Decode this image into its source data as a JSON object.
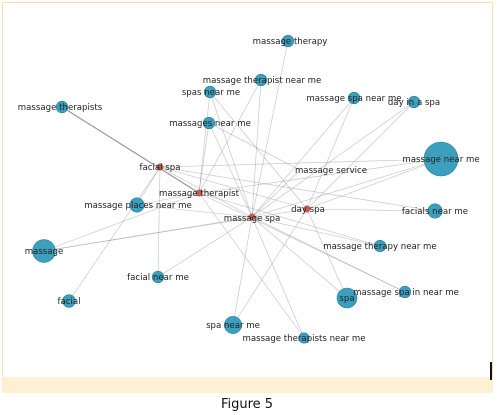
{
  "caption": "Figure 5",
  "colors": {
    "hub": "#cf5b4f",
    "keyword": "#3c9fbd",
    "keyword_stroke": "#2a7e98",
    "edge": "#8a8a8a",
    "frame_band": "#fdf0d4"
  },
  "graph": {
    "hubs": [
      {
        "id": "facial_spa",
        "label": "facial spa"
      },
      {
        "id": "massage_therapist",
        "label": "massage therapist"
      },
      {
        "id": "massage_spa",
        "label": "massage spa"
      },
      {
        "id": "day_spa",
        "label": "day spa"
      }
    ],
    "keywords": [
      {
        "id": "massage_therapy",
        "label": "massage therapy",
        "weight": 1
      },
      {
        "id": "massage_therapist_near_me",
        "label": "massage therapist near me",
        "weight": 1
      },
      {
        "id": "spas_near_me",
        "label": "spas near me",
        "weight": 1
      },
      {
        "id": "massage_spa_near_me",
        "label": "massage spa near me",
        "weight": 1
      },
      {
        "id": "day_spa_in_near",
        "label": "day in a spa",
        "weight": 1
      },
      {
        "id": "massage_therapists",
        "label": "massage therapists",
        "weight": 1
      },
      {
        "id": "massages_near_me",
        "label": "massages near me",
        "weight": 1
      },
      {
        "id": "massage_near_me",
        "label": "massage near me",
        "weight": 5
      },
      {
        "id": "massage_service",
        "label": "massage service",
        "weight": 0
      },
      {
        "id": "massage_places_near_me",
        "label": "massage places near me",
        "weight": 1.5
      },
      {
        "id": "facials_near_me",
        "label": "facials near me",
        "weight": 1.5
      },
      {
        "id": "massage",
        "label": "massage",
        "weight": 3
      },
      {
        "id": "massage_therapy_near_me",
        "label": "massage therapy near me",
        "weight": 1
      },
      {
        "id": "facial_near_me",
        "label": "facial near me",
        "weight": 1
      },
      {
        "id": "massage_spa_in_near_me",
        "label": "massage spa in near me",
        "weight": 1
      },
      {
        "id": "spa",
        "label": "spa",
        "weight": 2.5
      },
      {
        "id": "facial",
        "label": "facial",
        "weight": 1.2
      },
      {
        "id": "spa_near_me",
        "label": "spa near me",
        "weight": 2
      },
      {
        "id": "massage_therapists_near_me",
        "label": "massage therapists near me",
        "weight": 0.8
      }
    ],
    "edges": [
      [
        "massage_therapy",
        "massage_spa"
      ],
      [
        "massage_therapist_near_me",
        "massage_therapist"
      ],
      [
        "massage_therapist_near_me",
        "massage_spa"
      ],
      [
        "spas_near_me",
        "massage_spa"
      ],
      [
        "spas_near_me",
        "day_spa"
      ],
      [
        "spas_near_me",
        "massage_therapist"
      ],
      [
        "massage_spa_near_me",
        "massage_spa"
      ],
      [
        "massage_spa_near_me",
        "day_spa"
      ],
      [
        "day_spa_in_near",
        "day_spa"
      ],
      [
        "day_spa_in_near",
        "massage_spa"
      ],
      [
        "massage_therapists",
        "massage_therapist"
      ],
      [
        "massages_near_me",
        "massage_spa"
      ],
      [
        "massages_near_me",
        "massage_therapist"
      ],
      [
        "massages_near_me",
        "massage_service"
      ],
      [
        "massage_near_me",
        "massage_spa"
      ],
      [
        "massage_near_me",
        "massage_therapist"
      ],
      [
        "massage_near_me",
        "day_spa"
      ],
      [
        "massage_near_me",
        "facial_spa"
      ],
      [
        "massage_places_near_me",
        "massage_spa"
      ],
      [
        "massage_places_near_me",
        "facial_spa"
      ],
      [
        "massage_places_near_me",
        "massage_therapist"
      ],
      [
        "facials_near_me",
        "facial_spa"
      ],
      [
        "facials_near_me",
        "day_spa"
      ],
      [
        "massage",
        "massage_therapist"
      ],
      [
        "massage",
        "massage_spa"
      ],
      [
        "massage",
        "day_spa"
      ],
      [
        "massage_therapy_near_me",
        "massage_therapist"
      ],
      [
        "massage_therapy_near_me",
        "massage_spa"
      ],
      [
        "facial_near_me",
        "facial_spa"
      ],
      [
        "facial_near_me",
        "massage_spa"
      ],
      [
        "massage_spa_in_near_me",
        "massage_spa"
      ],
      [
        "massage_spa_in_near_me",
        "massage_therapist"
      ],
      [
        "spa",
        "massage_spa"
      ],
      [
        "spa",
        "day_spa"
      ],
      [
        "facial",
        "facial_spa"
      ],
      [
        "spa_near_me",
        "massage_spa"
      ],
      [
        "spa_near_me",
        "day_spa"
      ],
      [
        "massage_therapists_near_me",
        "massage_therapist"
      ],
      [
        "massage_therapists_near_me",
        "massage_spa"
      ],
      [
        "massage_service",
        "massage_spa"
      ],
      [
        "facial_spa",
        "massage_spa"
      ],
      [
        "facial_spa",
        "day_spa"
      ]
    ]
  }
}
